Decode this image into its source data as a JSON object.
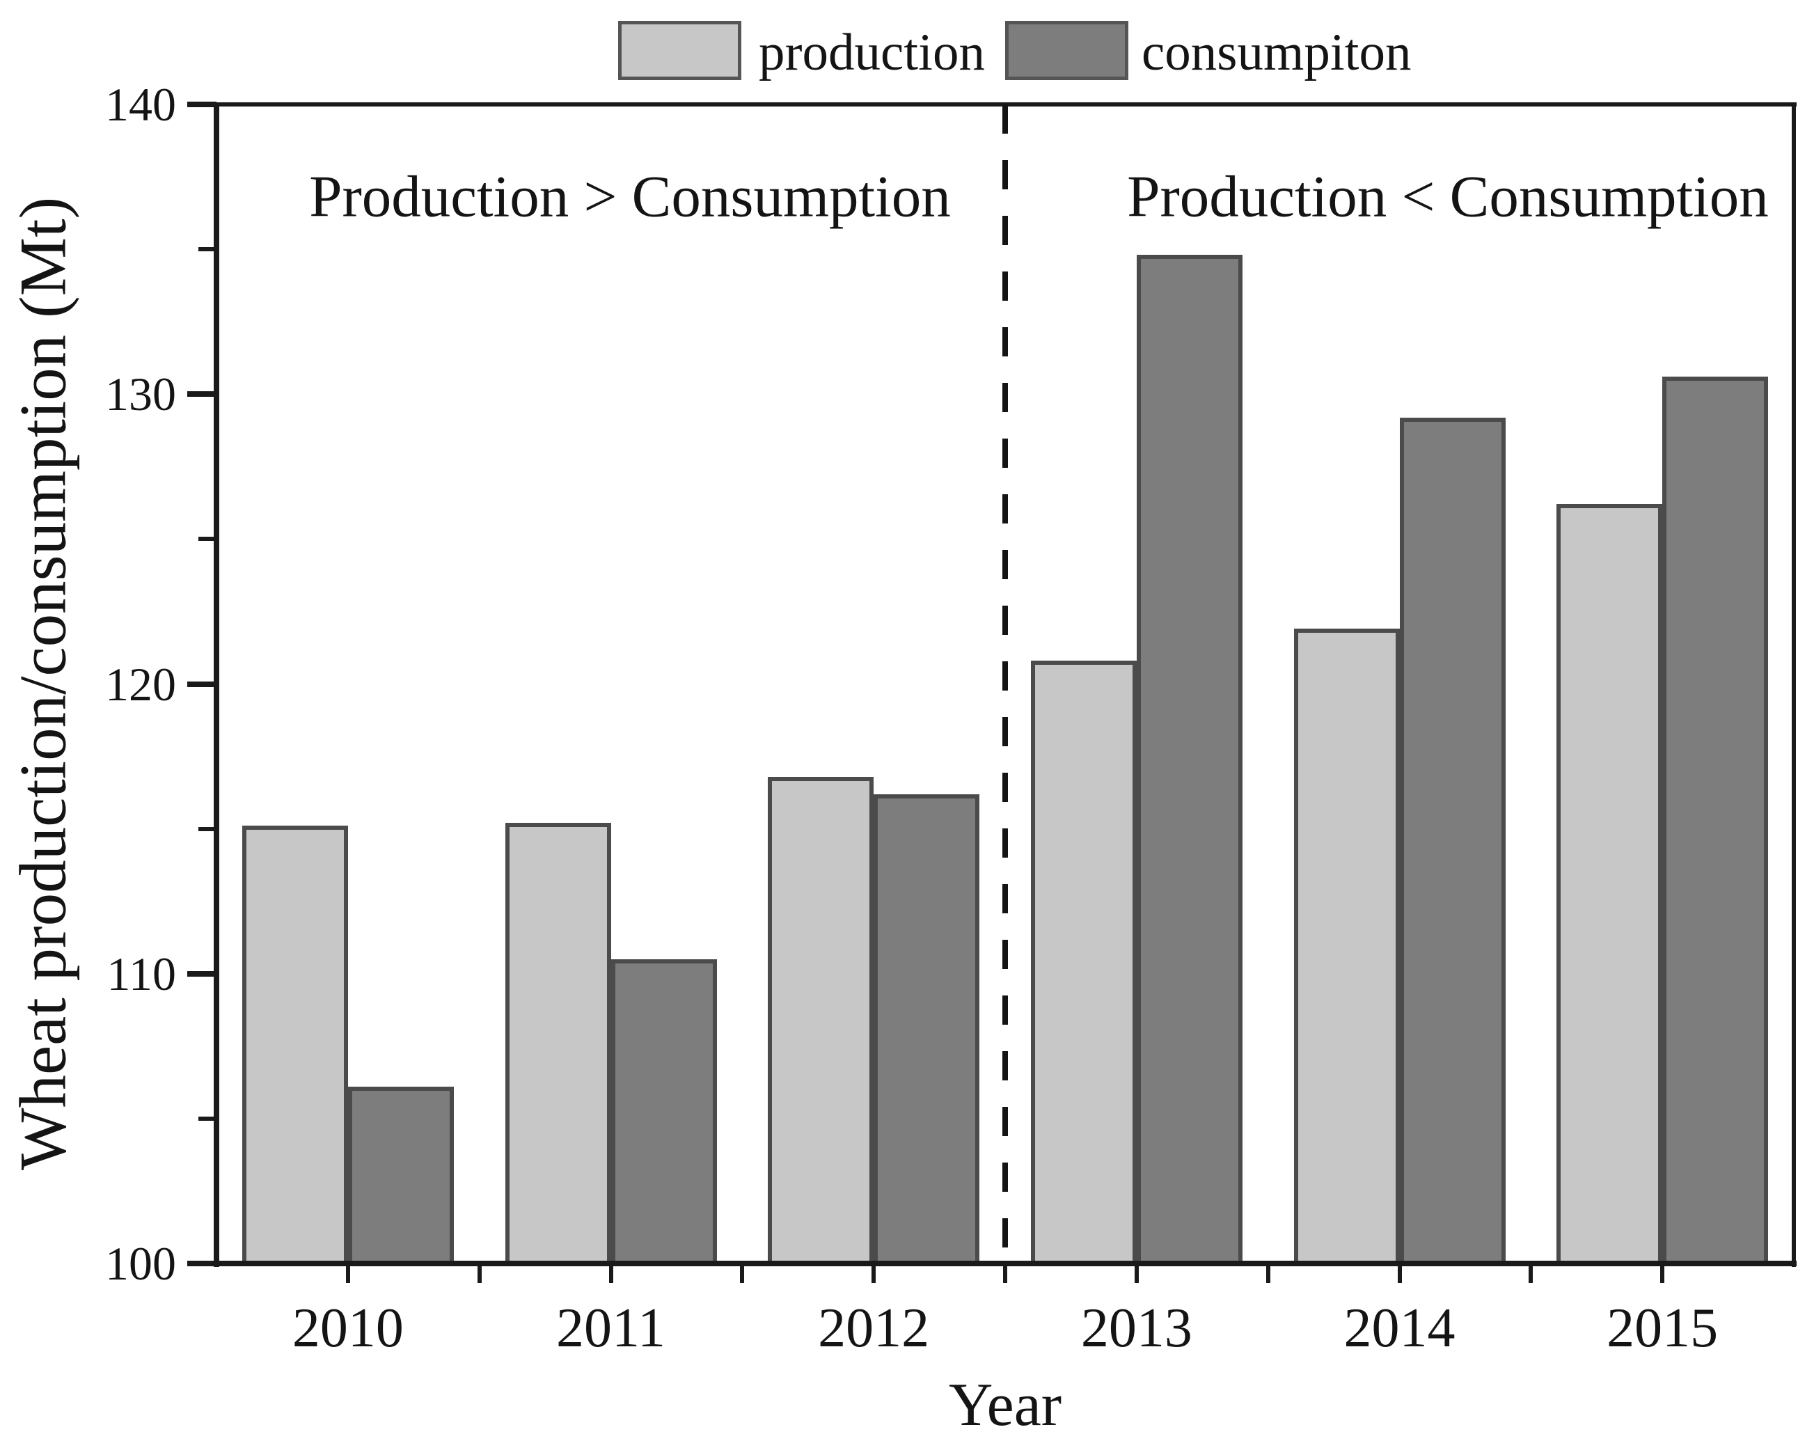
{
  "figure": {
    "background_color": "#ffffff",
    "text_color": "#141414"
  },
  "chart_data": {
    "type": "bar",
    "title": "",
    "categories": [
      "2010",
      "2011",
      "2012",
      "2013",
      "2014",
      "2015"
    ],
    "series": [
      {
        "name": "production",
        "color": "#c7c7c7",
        "values": [
          115.1,
          115.2,
          116.8,
          120.8,
          121.9,
          126.2
        ]
      },
      {
        "name": "consumpiton",
        "color": "#7d7d7d",
        "values": [
          106.1,
          110.5,
          116.2,
          134.8,
          129.2,
          130.6
        ]
      }
    ],
    "xlabel": "Year",
    "ylabel": "Wheat production/consumption (Mt)",
    "ylim": [
      100,
      140
    ],
    "yticks": [
      100,
      110,
      120,
      130,
      140
    ],
    "minor_ytick_step": 5,
    "grid": false,
    "legend_position": "top-center",
    "separator": {
      "style": "dashed",
      "after_category": "2012"
    },
    "annotations": [
      {
        "text": "Production > Consumption",
        "region": "left"
      },
      {
        "text": "Production < Consumption",
        "region": "right"
      }
    ]
  }
}
